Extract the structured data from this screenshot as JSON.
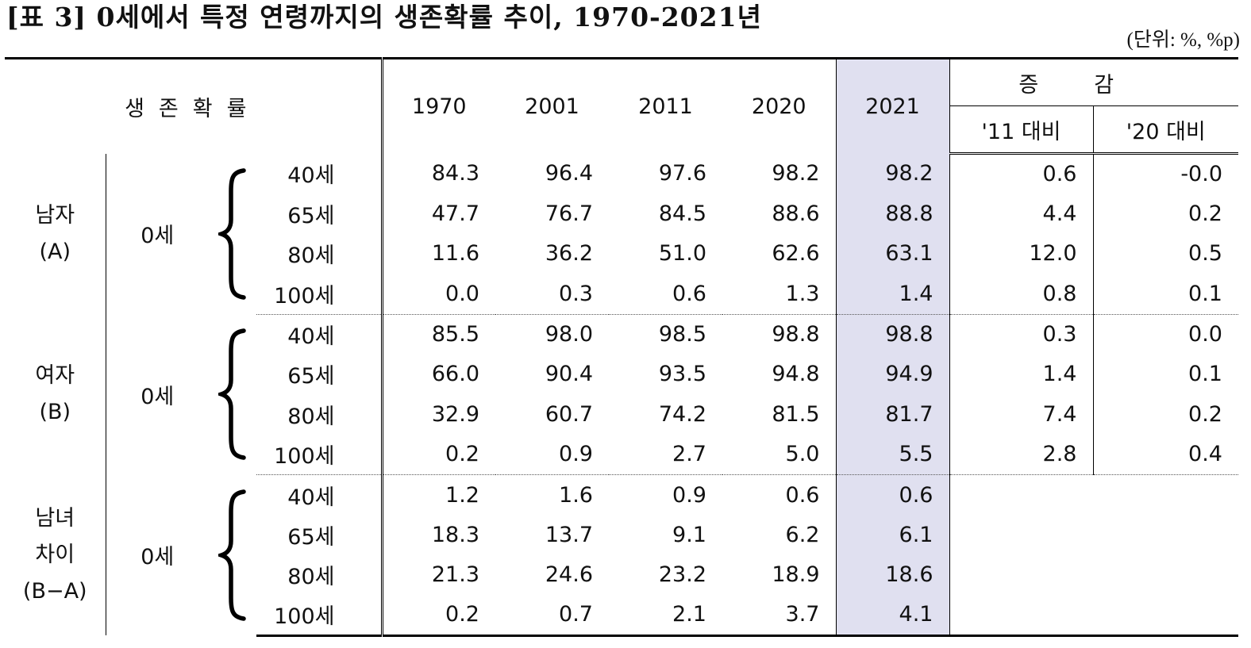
{
  "title": "[표 3] 0세에서 특정 연령까지의 생존확률 추이, 1970-2021년",
  "unit": "(단위: %, %p)",
  "header": {
    "label": "생존확률",
    "years": [
      "1970",
      "2001",
      "2011",
      "2020",
      "2021"
    ],
    "change_label": "증감",
    "change_sub": [
      "'11 대비",
      "'20 대비"
    ]
  },
  "base_age": "0세",
  "groups": [
    {
      "label_lines": [
        "남자",
        "(A)"
      ],
      "rows": [
        {
          "age": "40세",
          "values": [
            "84.3",
            "96.4",
            "97.6",
            "98.2",
            "98.2"
          ],
          "changes": [
            "0.6",
            "-0.0"
          ]
        },
        {
          "age": "65세",
          "values": [
            "47.7",
            "76.7",
            "84.5",
            "88.6",
            "88.8"
          ],
          "changes": [
            "4.4",
            "0.2"
          ]
        },
        {
          "age": "80세",
          "values": [
            "11.6",
            "36.2",
            "51.0",
            "62.6",
            "63.1"
          ],
          "changes": [
            "12.0",
            "0.5"
          ]
        },
        {
          "age": "100세",
          "values": [
            "0.0",
            "0.3",
            "0.6",
            "1.3",
            "1.4"
          ],
          "changes": [
            "0.8",
            "0.1"
          ]
        }
      ]
    },
    {
      "label_lines": [
        "여자",
        "(B)"
      ],
      "rows": [
        {
          "age": "40세",
          "values": [
            "85.5",
            "98.0",
            "98.5",
            "98.8",
            "98.8"
          ],
          "changes": [
            "0.3",
            "0.0"
          ]
        },
        {
          "age": "65세",
          "values": [
            "66.0",
            "90.4",
            "93.5",
            "94.8",
            "94.9"
          ],
          "changes": [
            "1.4",
            "0.1"
          ]
        },
        {
          "age": "80세",
          "values": [
            "32.9",
            "60.7",
            "74.2",
            "81.5",
            "81.7"
          ],
          "changes": [
            "7.4",
            "0.2"
          ]
        },
        {
          "age": "100세",
          "values": [
            "0.2",
            "0.9",
            "2.7",
            "5.0",
            "5.5"
          ],
          "changes": [
            "2.8",
            "0.4"
          ]
        }
      ]
    },
    {
      "label_lines": [
        "남녀",
        "차이",
        "(B−A)"
      ],
      "rows": [
        {
          "age": "40세",
          "values": [
            "1.2",
            "1.6",
            "0.9",
            "0.6",
            "0.6"
          ],
          "changes": []
        },
        {
          "age": "65세",
          "values": [
            "18.3",
            "13.7",
            "9.1",
            "6.2",
            "6.1"
          ],
          "changes": []
        },
        {
          "age": "80세",
          "values": [
            "21.3",
            "24.6",
            "23.2",
            "18.9",
            "18.6"
          ],
          "changes": []
        },
        {
          "age": "100세",
          "values": [
            "0.2",
            "0.7",
            "2.1",
            "3.7",
            "4.1"
          ],
          "changes": []
        }
      ]
    }
  ]
}
